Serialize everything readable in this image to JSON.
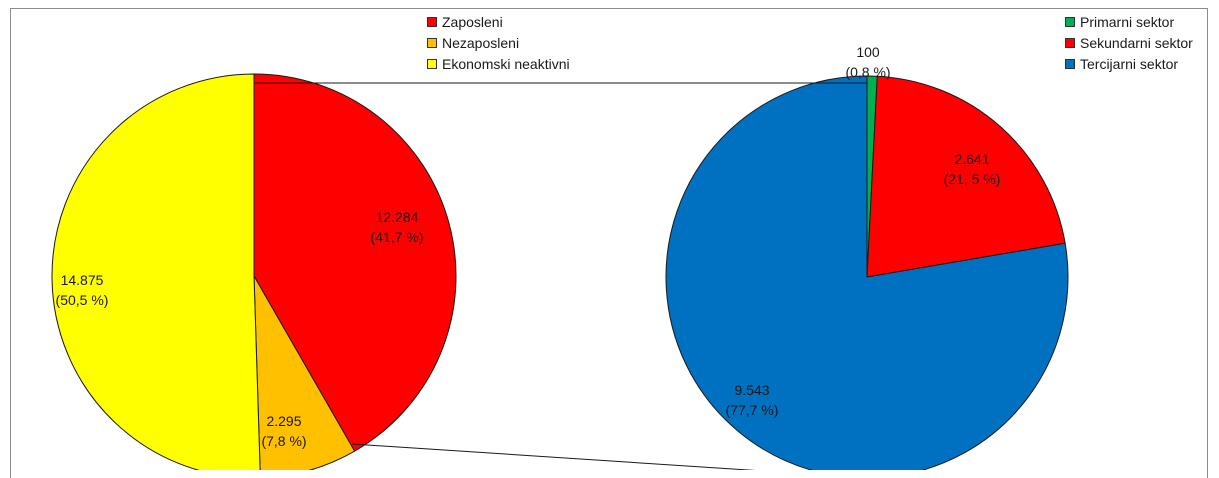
{
  "chart_data": [
    {
      "type": "pie",
      "series": [
        {
          "label": "Zaposleni",
          "value": 12284,
          "value_text": "12.284",
          "percent_text": "(41,7 %)",
          "color": "#FF0000"
        },
        {
          "label": "Nezaposleni",
          "value": 2295,
          "value_text": "2.295",
          "percent_text": "(7,8 %)",
          "color": "#FFC000"
        },
        {
          "label": "Ekonomski neaktivni",
          "value": 14875,
          "value_text": "14.875",
          "percent_text": "(50,5 %)",
          "color": "#FFFF00"
        }
      ],
      "legend": "top-center"
    },
    {
      "type": "pie",
      "series": [
        {
          "label": "Primarni sektor",
          "value": 100,
          "value_text": "100",
          "percent_text": "(0,8 %)",
          "color": "#00B050"
        },
        {
          "label": "Sekundarni sektor",
          "value": 2641,
          "value_text": "2.641",
          "percent_text": "(21, 5 %)",
          "color": "#FF0000"
        },
        {
          "label": "Tercijarni sektor",
          "value": 9543,
          "value_text": "9.543",
          "percent_text": "(77,7 %)",
          "color": "#0070C0"
        }
      ],
      "legend": "top-right"
    }
  ]
}
